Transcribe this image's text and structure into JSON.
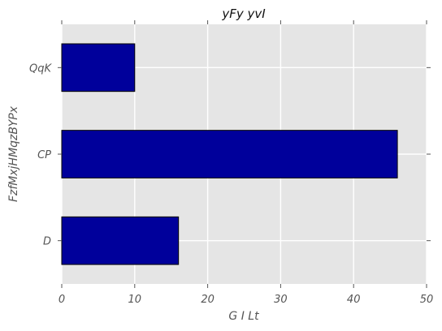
{
  "chart_data": {
    "type": "bar",
    "orientation": "horizontal",
    "title": "yFy yvI",
    "xlabel": "G I Lt",
    "ylabel": "FzfMxjHMqzBYPx",
    "categories": [
      "QqK",
      "CP",
      "D"
    ],
    "values": [
      10,
      46,
      16
    ],
    "xlim": [
      0,
      50
    ],
    "xticks": [
      0,
      10,
      20,
      30,
      40,
      50
    ],
    "grid": true,
    "legend": "none",
    "colors": {
      "bar": "#00009b",
      "bar_edge": "#000000",
      "plot_background": "#e5e5e5",
      "grid": "#ffffff",
      "text": "#555555",
      "title": "#111111"
    }
  }
}
